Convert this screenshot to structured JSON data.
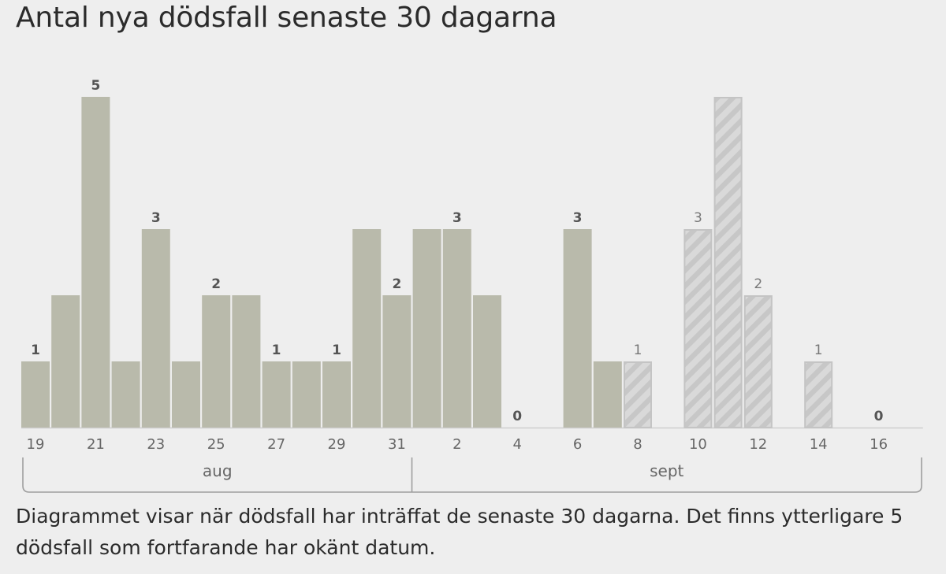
{
  "page": {
    "title": "Antal nya dödsfall senaste 30 dagarna",
    "caption": "Diagrammet visar när dödsfall har inträffat de senaste 30 dagarna. Det finns ytterligare 5 dödsfall som fortfarande har okänt datum."
  },
  "colors": {
    "bar": "#b9baab",
    "hatch_fill": "#d9d9d9",
    "hatch_stripe": "#c7c7c7",
    "hatch_outline": "#c4c4c4",
    "axis": "#cfcfcf",
    "tick_text": "#666666",
    "value_label_solid": "#555555",
    "value_label_hatched": "#777777",
    "background": "#eeeeee"
  },
  "chart_data": {
    "type": "bar",
    "title": "Antal nya dödsfall senaste 30 dagarna",
    "xlabel": "",
    "ylabel": "",
    "ylim": [
      0,
      5
    ],
    "grid": false,
    "legend": "none",
    "days": [
      19,
      20,
      21,
      22,
      23,
      24,
      25,
      26,
      27,
      28,
      29,
      30,
      31,
      1,
      2,
      3,
      4,
      5,
      6,
      7,
      8,
      9,
      10,
      11,
      12,
      13,
      14,
      15,
      16,
      17
    ],
    "values": [
      1,
      2,
      5,
      1,
      3,
      1,
      2,
      2,
      1,
      1,
      1,
      3,
      2,
      3,
      3,
      2,
      0,
      0,
      3,
      1,
      1,
      0,
      3,
      5,
      2,
      0,
      1,
      0,
      0,
      0
    ],
    "hatched": [
      false,
      false,
      false,
      false,
      false,
      false,
      false,
      false,
      false,
      false,
      false,
      false,
      false,
      false,
      false,
      false,
      false,
      false,
      false,
      false,
      true,
      false,
      true,
      true,
      true,
      false,
      true,
      false,
      false,
      false
    ],
    "value_labels": [
      "1",
      "",
      "5",
      "",
      "3",
      "",
      "2",
      "",
      "1",
      "",
      "1",
      "",
      "2",
      "",
      "3",
      "",
      "0",
      "",
      "3",
      "",
      "1",
      "",
      "3",
      "",
      "2",
      "",
      "1",
      "",
      "0",
      ""
    ],
    "tick_labels": [
      "19",
      "",
      "21",
      "",
      "23",
      "",
      "25",
      "",
      "27",
      "",
      "29",
      "",
      "31",
      "",
      "2",
      "",
      "4",
      "",
      "6",
      "",
      "8",
      "",
      "10",
      "",
      "12",
      "",
      "14",
      "",
      "16",
      ""
    ],
    "months": [
      {
        "label": "aug",
        "from_index": 0,
        "to_index": 12
      },
      {
        "label": "sept",
        "from_index": 13,
        "to_index": 29
      }
    ]
  }
}
